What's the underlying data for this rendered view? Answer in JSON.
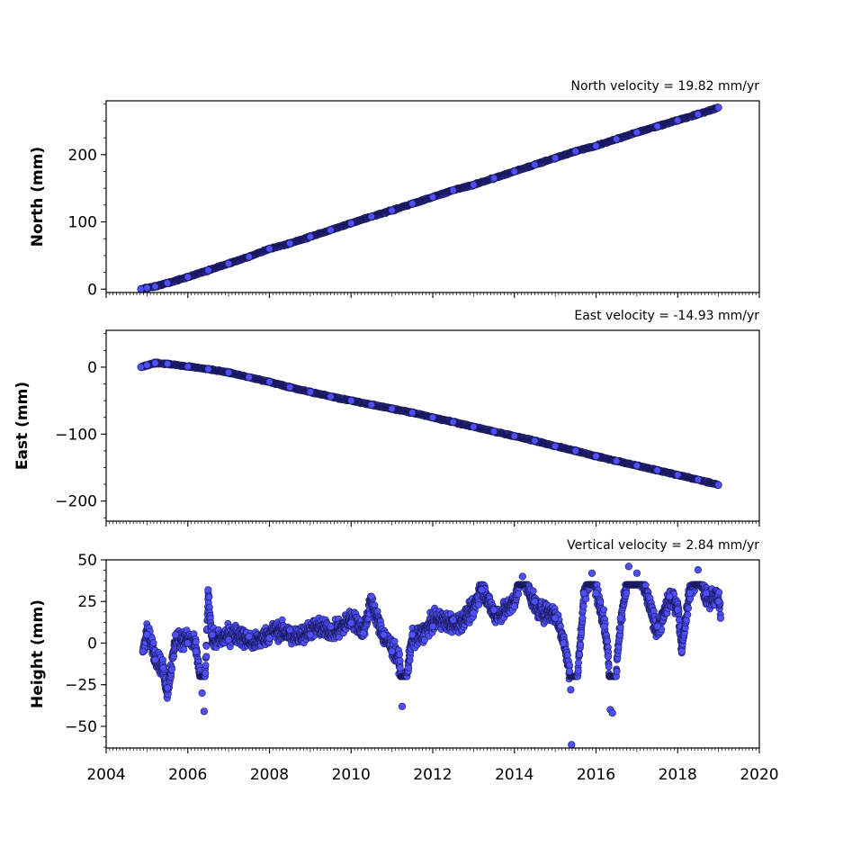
{
  "chart_data": [
    {
      "type": "scatter",
      "title": "North velocity = 19.82 mm/yr",
      "ylabel": "North (mm)",
      "xlim": [
        2004,
        2020
      ],
      "ylim": [
        -5,
        280
      ],
      "yticks": [
        0,
        100,
        200
      ],
      "x_tick_labels_visible": false,
      "series": [
        {
          "color": "#4f4ff7",
          "points": [
            {
              "x": 2004.85,
              "y": 0
            },
            {
              "x": 2005.0,
              "y": 2
            },
            {
              "x": 2005.2,
              "y": 4
            },
            {
              "x": 2005.5,
              "y": 9
            },
            {
              "x": 2006.0,
              "y": 18
            },
            {
              "x": 2006.5,
              "y": 28
            },
            {
              "x": 2007.0,
              "y": 38
            },
            {
              "x": 2007.5,
              "y": 48
            },
            {
              "x": 2008.0,
              "y": 60
            },
            {
              "x": 2008.5,
              "y": 68
            },
            {
              "x": 2009.0,
              "y": 78
            },
            {
              "x": 2009.5,
              "y": 88
            },
            {
              "x": 2010.0,
              "y": 98
            },
            {
              "x": 2010.5,
              "y": 108
            },
            {
              "x": 2011.0,
              "y": 117
            },
            {
              "x": 2011.5,
              "y": 127
            },
            {
              "x": 2012.0,
              "y": 137
            },
            {
              "x": 2012.5,
              "y": 147
            },
            {
              "x": 2013.0,
              "y": 155
            },
            {
              "x": 2013.5,
              "y": 165
            },
            {
              "x": 2014.0,
              "y": 175
            },
            {
              "x": 2014.5,
              "y": 185
            },
            {
              "x": 2015.0,
              "y": 195
            },
            {
              "x": 2015.5,
              "y": 205
            },
            {
              "x": 2016.0,
              "y": 213
            },
            {
              "x": 2016.5,
              "y": 223
            },
            {
              "x": 2017.0,
              "y": 233
            },
            {
              "x": 2017.5,
              "y": 242
            },
            {
              "x": 2018.0,
              "y": 251
            },
            {
              "x": 2018.5,
              "y": 260
            },
            {
              "x": 2019.0,
              "y": 270
            }
          ]
        }
      ]
    },
    {
      "type": "scatter",
      "title": "East velocity = -14.93 mm/yr",
      "ylabel": "East (mm)",
      "xlim": [
        2004,
        2020
      ],
      "ylim": [
        -230,
        55
      ],
      "yticks": [
        0,
        -100,
        -200
      ],
      "ytick_labels": [
        "0",
        "−100",
        "−200"
      ],
      "x_tick_labels_visible": false,
      "series": [
        {
          "color": "#4f4ff7",
          "points": [
            {
              "x": 2004.85,
              "y": 0
            },
            {
              "x": 2005.0,
              "y": 3
            },
            {
              "x": 2005.2,
              "y": 6
            },
            {
              "x": 2005.5,
              "y": 5
            },
            {
              "x": 2006.0,
              "y": 1
            },
            {
              "x": 2006.5,
              "y": -3
            },
            {
              "x": 2007.0,
              "y": -8
            },
            {
              "x": 2007.5,
              "y": -15
            },
            {
              "x": 2008.0,
              "y": -22
            },
            {
              "x": 2008.5,
              "y": -30
            },
            {
              "x": 2009.0,
              "y": -37
            },
            {
              "x": 2009.5,
              "y": -44
            },
            {
              "x": 2010.0,
              "y": -50
            },
            {
              "x": 2010.5,
              "y": -56
            },
            {
              "x": 2011.0,
              "y": -62
            },
            {
              "x": 2011.5,
              "y": -68
            },
            {
              "x": 2012.0,
              "y": -75
            },
            {
              "x": 2012.5,
              "y": -82
            },
            {
              "x": 2013.0,
              "y": -89
            },
            {
              "x": 2013.5,
              "y": -96
            },
            {
              "x": 2014.0,
              "y": -103
            },
            {
              "x": 2014.5,
              "y": -110
            },
            {
              "x": 2015.0,
              "y": -118
            },
            {
              "x": 2015.5,
              "y": -125
            },
            {
              "x": 2016.0,
              "y": -133
            },
            {
              "x": 2016.5,
              "y": -140
            },
            {
              "x": 2017.0,
              "y": -147
            },
            {
              "x": 2017.5,
              "y": -154
            },
            {
              "x": 2018.0,
              "y": -161
            },
            {
              "x": 2018.5,
              "y": -168
            },
            {
              "x": 2019.0,
              "y": -176
            }
          ]
        }
      ]
    },
    {
      "type": "scatter",
      "title": "Vertical velocity = 2.84 mm/yr",
      "ylabel": "Height (mm)",
      "xlabel": "",
      "xlim": [
        2004,
        2020
      ],
      "ylim": [
        -63,
        50
      ],
      "yticks": [
        50,
        25,
        0,
        -25,
        -50
      ],
      "ytick_labels": [
        "50",
        "25",
        "0",
        "−25",
        "−50"
      ],
      "xticks": [
        2004,
        2006,
        2008,
        2010,
        2012,
        2014,
        2016,
        2018,
        2020
      ],
      "xtick_labels": [
        "2004",
        "2006",
        "2008",
        "2010",
        "2012",
        "2014",
        "2016",
        "2018",
        "2020"
      ],
      "x_tick_labels_visible": true,
      "series": [
        {
          "color": "#4f4ff7",
          "points": [
            {
              "x": 2004.9,
              "y": -5
            },
            {
              "x": 2005.0,
              "y": 5
            },
            {
              "x": 2005.2,
              "y": -10
            },
            {
              "x": 2005.4,
              "y": -15
            },
            {
              "x": 2005.5,
              "y": -27
            },
            {
              "x": 2005.7,
              "y": 5
            },
            {
              "x": 2006.0,
              "y": 0
            },
            {
              "x": 2006.2,
              "y": -5
            },
            {
              "x": 2006.35,
              "y": -30
            },
            {
              "x": 2006.4,
              "y": -41
            },
            {
              "x": 2006.5,
              "y": 32
            },
            {
              "x": 2006.6,
              "y": 5
            },
            {
              "x": 2007.0,
              "y": 2
            },
            {
              "x": 2007.5,
              "y": 4
            },
            {
              "x": 2008.0,
              "y": 3
            },
            {
              "x": 2008.5,
              "y": 8
            },
            {
              "x": 2009.0,
              "y": 5
            },
            {
              "x": 2009.5,
              "y": 10
            },
            {
              "x": 2010.0,
              "y": 12
            },
            {
              "x": 2010.3,
              "y": 6
            },
            {
              "x": 2010.5,
              "y": 28
            },
            {
              "x": 2010.8,
              "y": 5
            },
            {
              "x": 2011.0,
              "y": -5
            },
            {
              "x": 2011.2,
              "y": -15
            },
            {
              "x": 2011.25,
              "y": -38
            },
            {
              "x": 2011.5,
              "y": 5
            },
            {
              "x": 2012.0,
              "y": 10
            },
            {
              "x": 2012.5,
              "y": 14
            },
            {
              "x": 2013.0,
              "y": 18
            },
            {
              "x": 2013.2,
              "y": 32
            },
            {
              "x": 2013.5,
              "y": 20
            },
            {
              "x": 2014.0,
              "y": 22
            },
            {
              "x": 2014.2,
              "y": 40
            },
            {
              "x": 2014.5,
              "y": 25
            },
            {
              "x": 2015.0,
              "y": 15
            },
            {
              "x": 2015.2,
              "y": 0
            },
            {
              "x": 2015.35,
              "y": -17
            },
            {
              "x": 2015.38,
              "y": -28
            },
            {
              "x": 2015.4,
              "y": -61
            },
            {
              "x": 2015.7,
              "y": 30
            },
            {
              "x": 2015.9,
              "y": 42
            },
            {
              "x": 2016.0,
              "y": 30
            },
            {
              "x": 2016.2,
              "y": 10
            },
            {
              "x": 2016.3,
              "y": -8
            },
            {
              "x": 2016.35,
              "y": -40
            },
            {
              "x": 2016.4,
              "y": -42
            },
            {
              "x": 2016.6,
              "y": 15
            },
            {
              "x": 2016.8,
              "y": 46
            },
            {
              "x": 2017.0,
              "y": 42
            },
            {
              "x": 2017.5,
              "y": 10
            },
            {
              "x": 2017.8,
              "y": 28
            },
            {
              "x": 2018.0,
              "y": 20
            },
            {
              "x": 2018.1,
              "y": -5
            },
            {
              "x": 2018.3,
              "y": 30
            },
            {
              "x": 2018.5,
              "y": 44
            },
            {
              "x": 2018.7,
              "y": 30
            },
            {
              "x": 2019.0,
              "y": 25
            },
            {
              "x": 2019.05,
              "y": 15
            }
          ]
        }
      ]
    }
  ]
}
